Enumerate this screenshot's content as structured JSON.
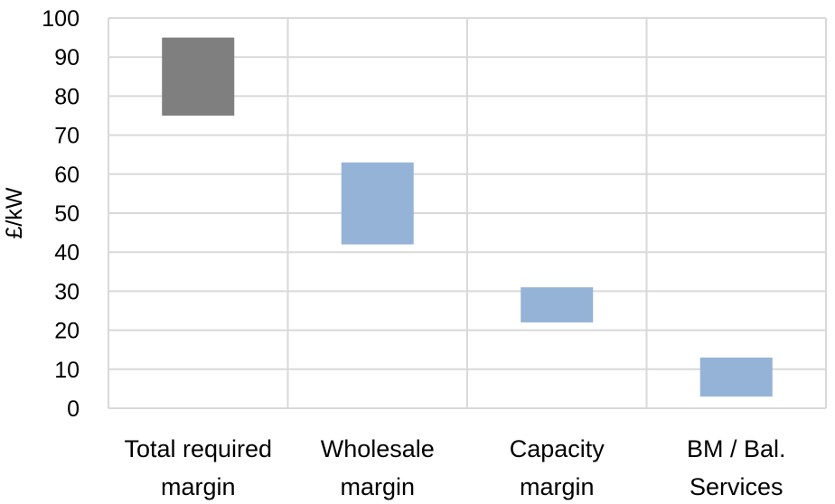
{
  "chart_data": {
    "type": "bar",
    "subtype": "floating-range",
    "title": "",
    "xlabel": "",
    "ylabel": "£/kW",
    "ylim": [
      0,
      100
    ],
    "yticks": [
      0,
      10,
      20,
      30,
      40,
      50,
      60,
      70,
      80,
      90,
      100
    ],
    "grid": {
      "horizontal": true,
      "vertical": true
    },
    "legend": "none",
    "categories": [
      {
        "lines": [
          "Total required",
          "margin"
        ]
      },
      {
        "lines": [
          "Wholesale",
          "margin"
        ]
      },
      {
        "lines": [
          "Capacity",
          "margin"
        ]
      },
      {
        "lines": [
          "BM / Bal.",
          "Services"
        ]
      }
    ],
    "bars": [
      {
        "low": 75,
        "high": 95,
        "color": "#7f7f7f"
      },
      {
        "low": 42,
        "high": 63,
        "color": "#95b3d7"
      },
      {
        "low": 22,
        "high": 31,
        "color": "#95b3d7"
      },
      {
        "low": 3,
        "high": 13,
        "color": "#95b3d7"
      }
    ],
    "colors": {
      "grid": "#d9d9d9",
      "text": "#000000"
    }
  }
}
